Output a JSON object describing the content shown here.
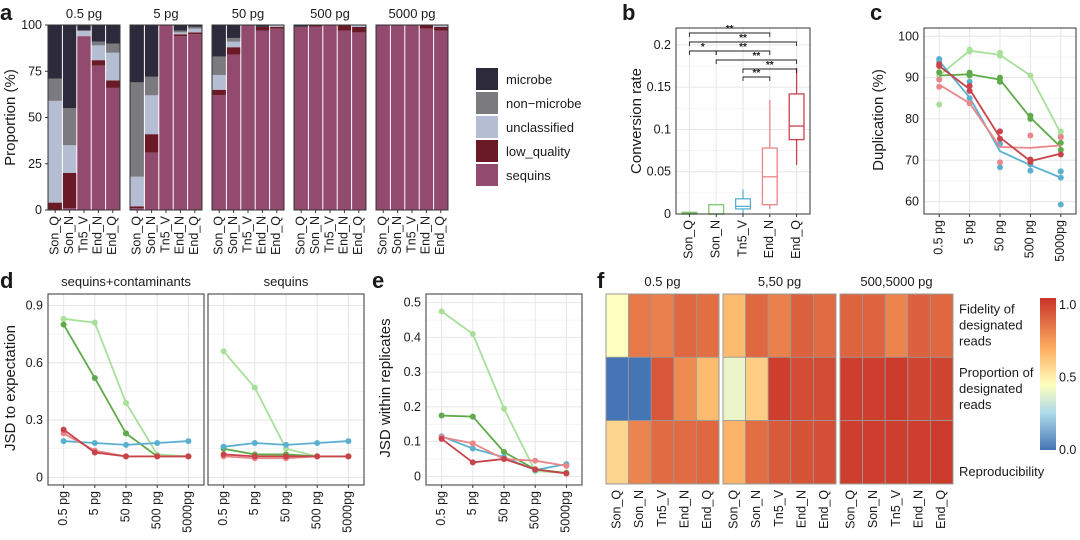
{
  "figure": {
    "panel_labels": [
      "a",
      "b",
      "c",
      "d",
      "e",
      "f"
    ]
  },
  "chart_data": [
    {
      "panel": "a",
      "type": "bar",
      "stacked": true,
      "ylabel": "Proportion (%)",
      "ylim": [
        0,
        100
      ],
      "yticks": [
        0,
        25,
        50,
        75,
        100
      ],
      "facets": [
        "0.5 pg",
        "5 pg",
        "50 pg",
        "500 pg",
        "5000 pg"
      ],
      "categories": [
        "Son_Q",
        "Son_N",
        "Tn5_V",
        "End_N",
        "End_Q"
      ],
      "legend": [
        "microbe",
        "non−microbe",
        "unclassified",
        "low_quality",
        "sequins"
      ],
      "colors": {
        "microbe": "#2d2a3b",
        "non_microbe": "#7b7a7f",
        "unclassified": "#b5bdd2",
        "low_quality": "#6a1a26",
        "sequins": "#924a6e"
      },
      "facet_data": [
        {
          "sequins": [
            0,
            1,
            94,
            78,
            66
          ],
          "low_quality": [
            4,
            19,
            0,
            3,
            4
          ],
          "unclassified": [
            55,
            15,
            3,
            8,
            15
          ],
          "non_microbe": [
            12,
            20,
            0,
            2,
            5
          ],
          "microbe": [
            29,
            45,
            3,
            9,
            10
          ]
        },
        {
          "sequins": [
            1,
            31,
            100,
            94,
            95
          ],
          "low_quality": [
            1,
            10,
            0,
            1,
            1
          ],
          "unclassified": [
            16,
            21,
            0,
            1,
            2
          ],
          "non_microbe": [
            51,
            10,
            0,
            1,
            1
          ],
          "microbe": [
            31,
            28,
            0,
            3,
            1
          ]
        },
        {
          "sequins": [
            62,
            84,
            100,
            97,
            98
          ],
          "low_quality": [
            3,
            4,
            0,
            2,
            1
          ],
          "unclassified": [
            8,
            3,
            0,
            0,
            1
          ],
          "non_microbe": [
            10,
            2,
            0,
            0,
            0
          ],
          "microbe": [
            17,
            7,
            0,
            1,
            0
          ]
        },
        {
          "sequins": [
            99,
            99,
            100,
            97,
            96
          ],
          "low_quality": [
            0,
            1,
            0,
            3,
            3
          ],
          "unclassified": [
            0,
            0,
            0,
            0,
            1
          ],
          "non_microbe": [
            0,
            0,
            0,
            0,
            0
          ],
          "microbe": [
            1,
            0,
            0,
            0,
            0
          ]
        },
        {
          "sequins": [
            100,
            100,
            100,
            98,
            97
          ],
          "low_quality": [
            0,
            0,
            0,
            2,
            2
          ],
          "unclassified": [
            0,
            0,
            0,
            0,
            1
          ],
          "non_microbe": [
            0,
            0,
            0,
            0,
            0
          ],
          "microbe": [
            0,
            0,
            0,
            0,
            0
          ]
        }
      ]
    },
    {
      "panel": "b",
      "type": "box",
      "ylabel": "Conversion rate",
      "ylim": [
        0,
        0.22
      ],
      "yticks": [
        0.0,
        0.05,
        0.1,
        0.15,
        0.2
      ],
      "categories": [
        "Son_Q",
        "Son_N",
        "Tn5_V",
        "End_N",
        "End_Q"
      ],
      "colors": [
        "#7cc96d",
        "#7cc96d",
        "#5bb0d0",
        "#e8868a",
        "#c8434a"
      ],
      "boxes": [
        {
          "min": 0.0,
          "q1": 0.0,
          "median": 0.001,
          "q3": 0.002,
          "max": 0.002
        },
        {
          "min": 0.0,
          "q1": 0.0,
          "median": 0.0,
          "q3": 0.011,
          "max": 0.011
        },
        {
          "min": 0.0,
          "q1": 0.006,
          "median": 0.009,
          "q3": 0.018,
          "max": 0.029
        },
        {
          "min": 0.006,
          "q1": 0.011,
          "median": 0.044,
          "q3": 0.078,
          "max": 0.135
        },
        {
          "min": 0.058,
          "q1": 0.088,
          "median": 0.104,
          "q3": 0.142,
          "max": 0.173
        }
      ],
      "significance": [
        {
          "from": "Son_Q",
          "to": "End_N",
          "label": "**"
        },
        {
          "from": "Son_Q",
          "to": "End_Q",
          "label": "**"
        },
        {
          "from": "Son_Q",
          "to": "Son_N",
          "label": "*"
        },
        {
          "from": "Son_N",
          "to": "End_N",
          "label": "**"
        },
        {
          "from": "Son_N",
          "to": "End_Q",
          "label": "**"
        },
        {
          "from": "Tn5_V",
          "to": "End_Q",
          "label": "**"
        },
        {
          "from": "Tn5_V",
          "to": "End_N",
          "label": "**"
        }
      ]
    },
    {
      "panel": "c",
      "type": "line",
      "ylabel": "Duplication (%)",
      "ylim": [
        57,
        102
      ],
      "yticks": [
        60,
        70,
        80,
        90,
        100
      ],
      "x": [
        "0.5 pg",
        "5 pg",
        "50 pg",
        "500 pg",
        "5000pg"
      ],
      "series": [
        {
          "name": "Son_Q",
          "color": "#a8e09a",
          "values": [
            90.5,
            96.5,
            95.5,
            90.5,
            76.5
          ],
          "points": [
            [
              83.5,
              90.5
            ],
            [
              96.3,
              96.8
            ],
            [
              95.3,
              96.0
            ],
            [
              90.5
            ],
            [
              76.0,
              77.0
            ]
          ]
        },
        {
          "name": "Son_N",
          "color": "#5faa49",
          "values": [
            90.5,
            90.8,
            89.5,
            80.3,
            73.2
          ],
          "points": [
            [
              91.3
            ],
            [
              90.5,
              91.2
            ],
            [
              89.0,
              90.0
            ],
            [
              80.0,
              80.8
            ],
            [
              74.2,
              72.5
            ]
          ]
        },
        {
          "name": "Tn5_V",
          "color": "#5bb0d0",
          "values": [
            94.0,
            85.2,
            72.2,
            68.8,
            65.8
          ],
          "points": [
            [
              94.5,
              93.8
            ],
            [
              89.0,
              85.0
            ],
            [
              74.0,
              68.3
            ],
            [
              69.0,
              67.5
            ],
            [
              67.3,
              59.3,
              65.8
            ]
          ]
        },
        {
          "name": "End_N",
          "color": "#e8868a",
          "values": [
            88.3,
            83.8,
            73.2,
            73.0,
            73.6
          ],
          "points": [
            [
              89.5,
              87.8
            ],
            [
              83.8
            ],
            [
              69.5
            ],
            [
              76.0
            ],
            [
              75.6
            ]
          ]
        },
        {
          "name": "End_Q",
          "color": "#c8434a",
          "values": [
            92.8,
            87.2,
            75.5,
            69.8,
            71.6
          ],
          "points": [
            [
              92.8,
              93.2
            ],
            [
              88.0,
              86.8
            ],
            [
              77.0,
              75.2
            ],
            [
              70.2,
              69.6
            ],
            [
              71.4
            ]
          ]
        }
      ]
    },
    {
      "panel": "d",
      "type": "line",
      "ylabel": "JSD to expectation",
      "ylim": [
        -0.04,
        0.96
      ],
      "yticks": [
        0.0,
        0.3,
        0.6,
        0.9
      ],
      "x": [
        "0.5 pg",
        "5 pg",
        "50 pg",
        "500 pg",
        "5000pg"
      ],
      "facets": [
        "sequins+contaminants",
        "sequins"
      ],
      "facet_data": [
        [
          {
            "name": "Son_Q",
            "color": "#a8e09a",
            "values": [
              0.83,
              0.81,
              0.39,
              0.12,
              0.11
            ]
          },
          {
            "name": "Son_N",
            "color": "#5faa49",
            "values": [
              0.8,
              0.52,
              0.23,
              0.11,
              0.11
            ]
          },
          {
            "name": "Tn5_V",
            "color": "#5bb0d0",
            "values": [
              0.19,
              0.18,
              0.17,
              0.18,
              0.19
            ]
          },
          {
            "name": "End_N",
            "color": "#e8868a",
            "values": [
              0.23,
              0.14,
              0.11,
              0.11,
              0.11
            ]
          },
          {
            "name": "End_Q",
            "color": "#c8434a",
            "values": [
              0.25,
              0.13,
              0.11,
              0.11,
              0.11
            ]
          }
        ],
        [
          {
            "name": "Son_Q",
            "color": "#a8e09a",
            "values": [
              0.66,
              0.47,
              0.15,
              0.11,
              0.11
            ]
          },
          {
            "name": "Son_N",
            "color": "#5faa49",
            "values": [
              0.15,
              0.12,
              0.12,
              0.11,
              0.11
            ]
          },
          {
            "name": "Tn5_V",
            "color": "#5bb0d0",
            "values": [
              0.16,
              0.18,
              0.17,
              0.18,
              0.19
            ]
          },
          {
            "name": "End_N",
            "color": "#e8868a",
            "values": [
              0.11,
              0.1,
              0.1,
              0.11,
              0.11
            ]
          },
          {
            "name": "End_Q",
            "color": "#c8434a",
            "values": [
              0.12,
              0.11,
              0.11,
              0.11,
              0.11
            ]
          }
        ]
      ]
    },
    {
      "panel": "e",
      "type": "line",
      "ylabel": "JSD within replicates",
      "ylim": [
        -0.025,
        0.525
      ],
      "yticks": [
        0.0,
        0.1,
        0.2,
        0.3,
        0.4,
        0.5
      ],
      "x": [
        "0.5 pg",
        "5 pg",
        "50 pg",
        "500 pg",
        "5000pg"
      ],
      "series": [
        {
          "name": "Son_Q",
          "color": "#a8e09a",
          "values": [
            0.475,
            0.41,
            0.195,
            0.015,
            0.01
          ]
        },
        {
          "name": "Son_N",
          "color": "#5faa49",
          "values": [
            0.175,
            0.172,
            0.07,
            0.02,
            0.01
          ]
        },
        {
          "name": "Tn5_V",
          "color": "#5bb0d0",
          "values": [
            0.115,
            0.08,
            0.055,
            0.018,
            0.035
          ]
        },
        {
          "name": "End_N",
          "color": "#e8868a",
          "values": [
            0.113,
            0.095,
            0.05,
            0.045,
            0.03
          ]
        },
        {
          "name": "End_Q",
          "color": "#c8434a",
          "values": [
            0.108,
            0.04,
            0.05,
            0.02,
            0.008
          ]
        }
      ]
    },
    {
      "panel": "f",
      "type": "heatmap",
      "facets": [
        "0.5 pg",
        "5,50 pg",
        "500,5000 pg"
      ],
      "columns": [
        "Son_Q",
        "Son_N",
        "Tn5_V",
        "End_N",
        "End_Q"
      ],
      "rows": [
        "Fidelity of designated reads",
        "Proportion of designated reads",
        "Reproducibility"
      ],
      "row_label_lines": [
        [
          "Fidelity of",
          "designated",
          "reads"
        ],
        [
          "Proportion of",
          "designated",
          "reads"
        ],
        [
          "Reproducibility"
        ]
      ],
      "colorbar": {
        "ticks": [
          "1.0",
          "0.5",
          "0.0"
        ],
        "range": [
          0,
          1.05
        ]
      },
      "facet_data": [
        [
          [
            0.45,
            0.85,
            0.83,
            0.9,
            0.88
          ],
          [
            0.0,
            0.0,
            0.95,
            0.8,
            0.66
          ],
          [
            0.58,
            0.82,
            0.89,
            0.89,
            0.9
          ]
        ],
        [
          [
            0.66,
            0.9,
            0.83,
            0.92,
            0.89
          ],
          [
            0.4,
            0.6,
            1.02,
            0.98,
            0.98
          ],
          [
            0.68,
            0.88,
            0.94,
            0.96,
            0.97
          ]
        ],
        [
          [
            0.91,
            0.91,
            0.82,
            0.92,
            0.9
          ],
          [
            1.02,
            1.02,
            1.03,
            1.0,
            1.0
          ],
          [
            1.02,
            1.02,
            1.02,
            1.02,
            1.03
          ]
        ]
      ]
    }
  ]
}
